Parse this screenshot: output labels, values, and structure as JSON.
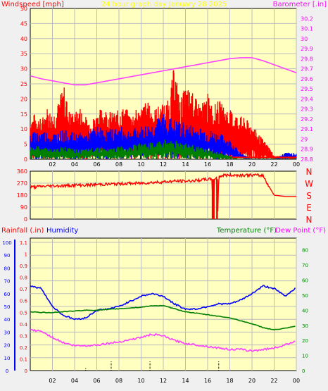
{
  "palette": {
    "background": "#f0f0f0",
    "plot_bg": "#ffffc0",
    "grid": "#bcbcbc",
    "wind_speed": "#ff0000",
    "wind_gust_low": "#0000ff",
    "wind_calm": "#008000",
    "barometer": "#ff40ff",
    "direction": "#ff0000",
    "humidity": "#0000ff",
    "temperature": "#008000",
    "dewpoint": "#ff40ff",
    "title": "#ffff00",
    "axis_red": "#ff0000",
    "axis_blue": "#0000ff",
    "axis_magenta": "#ff00ff",
    "axis_green": "#008000"
  },
  "chart_data": [
    {
      "type": "line",
      "title": "24 hour graph day   January 28 2025",
      "left_axis_label": "Windspeed [mph]",
      "right_axis_label": "Barometer [.in]",
      "x_ticks": [
        "02",
        "04",
        "06",
        "08",
        "10",
        "12",
        "14",
        "16",
        "18",
        "20",
        "22",
        "00"
      ],
      "ylim_left": [
        0,
        50
      ],
      "yticks_left": [
        "0",
        "5",
        "10",
        "15",
        "20",
        "25",
        "30",
        "35",
        "40",
        "45",
        "50"
      ],
      "ylim_right": [
        28.8,
        30.3
      ],
      "yticks_right": [
        "28.8",
        "28.9",
        "29",
        "29.1",
        "29.2",
        "29.3",
        "29.4",
        "29.5",
        "29.6",
        "29.7",
        "29.8",
        "29.9",
        "30",
        "30.1",
        "30.2"
      ],
      "grid": true,
      "series": [
        {
          "axis": "right",
          "color": "barometer",
          "x": [
            0,
            1,
            2,
            3,
            4,
            5,
            6,
            7,
            8,
            9,
            10,
            11,
            12,
            13,
            14,
            15,
            16,
            17,
            18,
            19,
            20,
            21,
            22,
            23,
            24
          ],
          "y": [
            29.63,
            29.6,
            29.58,
            29.56,
            29.54,
            29.54,
            29.56,
            29.58,
            29.6,
            29.62,
            29.64,
            29.66,
            29.68,
            29.7,
            29.72,
            29.74,
            29.76,
            29.78,
            29.8,
            29.81,
            29.81,
            29.78,
            29.74,
            29.7,
            29.66
          ]
        },
        {
          "axis": "left",
          "color": "wind_speed",
          "style": "band",
          "x": [
            0,
            0.5,
            1,
            1.5,
            2,
            2.5,
            3,
            3.5,
            4,
            4.5,
            5,
            5.5,
            6,
            6.5,
            7,
            7.5,
            8,
            8.5,
            9,
            9.5,
            10,
            10.5,
            11,
            11.5,
            12,
            12.5,
            13,
            13.5,
            14,
            14.5,
            15,
            15.5,
            16,
            16.5,
            17,
            17.5,
            18,
            18.5,
            19,
            19.5,
            20,
            20.5,
            21,
            21.5,
            22,
            22.5,
            23,
            23.5,
            24
          ],
          "y": [
            13,
            14,
            12,
            16,
            14,
            17,
            23,
            15,
            14,
            16,
            13,
            12,
            14,
            16,
            15,
            14,
            15,
            16,
            14,
            15,
            16,
            18,
            15,
            16,
            17,
            18,
            29,
            18,
            22,
            21,
            18,
            17,
            20,
            16,
            18,
            16,
            15,
            14,
            13,
            12,
            11,
            8,
            6,
            4,
            1,
            1,
            1,
            1,
            1
          ]
        },
        {
          "axis": "left",
          "color": "wind_gust_low",
          "style": "band",
          "x": [
            0,
            1,
            2,
            3,
            4,
            5,
            6,
            7,
            8,
            9,
            10,
            11,
            12,
            13,
            14,
            15,
            16,
            17,
            18,
            19,
            20,
            21,
            22,
            23,
            24
          ],
          "y": [
            8,
            9,
            8,
            9,
            8,
            8,
            10,
            9,
            10,
            9,
            10,
            11,
            14,
            12,
            11,
            10,
            9,
            8,
            6,
            2,
            0,
            0,
            0,
            2,
            2
          ]
        },
        {
          "axis": "left",
          "color": "wind_calm",
          "style": "band",
          "x": [
            0,
            1,
            2,
            3,
            4,
            5,
            6,
            7,
            8,
            9,
            10,
            11,
            12,
            13,
            14,
            15,
            16,
            17,
            18,
            19,
            20,
            21,
            22,
            23,
            24
          ],
          "y": [
            4,
            4,
            3,
            4,
            3,
            3,
            4,
            3,
            4,
            4,
            5,
            5,
            6,
            6,
            5,
            4,
            3,
            2,
            1,
            0,
            0,
            0,
            0,
            0,
            0
          ]
        }
      ]
    },
    {
      "type": "line",
      "left_axis_label": "",
      "right_axis_label": "N W S E N",
      "x_ticks": [],
      "ylim_left": [
        0,
        360
      ],
      "yticks_left": [
        "0",
        "90",
        "180",
        "270",
        "360"
      ],
      "compass_labels": [
        "N",
        "W",
        "S",
        "E",
        "N"
      ],
      "grid": true,
      "series": [
        {
          "axis": "left",
          "color": "direction",
          "x": [
            0,
            1,
            2,
            3,
            4,
            5,
            6,
            7,
            8,
            9,
            10,
            11,
            12,
            13,
            14,
            15,
            16,
            16.4,
            16.5,
            16.6,
            16.8,
            16.9,
            17,
            17.5,
            18,
            19,
            20,
            21,
            21.5,
            22,
            22.5,
            23,
            24
          ],
          "y": [
            240,
            245,
            250,
            250,
            255,
            255,
            260,
            262,
            265,
            268,
            270,
            275,
            280,
            285,
            285,
            290,
            300,
            300,
            0,
            300,
            310,
            0,
            320,
            330,
            330,
            330,
            330,
            328,
            250,
            180,
            175,
            170,
            170
          ]
        }
      ]
    },
    {
      "type": "line",
      "left_axis_label_1": "Rainfall (.in)",
      "left_axis_label_2": "Humidity",
      "right_axis_label_1": "Temperature (°F)",
      "right_axis_label_2": "Dew Point (°F)",
      "x_ticks": [
        "02",
        "04",
        "06",
        "08",
        "10",
        "12",
        "14",
        "16",
        "18",
        "20",
        "22",
        "00"
      ],
      "ylim_humidity": [
        0,
        100
      ],
      "yticks_humidity": [
        "0",
        "10",
        "20",
        "30",
        "40",
        "50",
        "60",
        "70",
        "80",
        "90",
        "100"
      ],
      "ylim_rain": [
        0,
        1.1
      ],
      "yticks_rain": [
        "0",
        "0.1",
        "0.2",
        "0.3",
        "0.4",
        "0.5",
        "0.6",
        "0.7",
        "0.8",
        "0.9",
        "1",
        "1.1"
      ],
      "ylim_temp": [
        0,
        85
      ],
      "yticks_temp": [
        "0",
        "10",
        "20",
        "30",
        "40",
        "50",
        "60",
        "70",
        "80"
      ],
      "grid": true,
      "series": [
        {
          "name": "Humidity",
          "axis": "humidity",
          "color": "humidity",
          "x": [
            0,
            1,
            2,
            3,
            4,
            5,
            6,
            7,
            8,
            9,
            10,
            11,
            12,
            13,
            14,
            15,
            16,
            17,
            18,
            19,
            20,
            21,
            22,
            23,
            24
          ],
          "y": [
            66,
            64,
            50,
            43,
            40,
            41,
            47,
            48,
            50,
            54,
            58,
            60,
            58,
            52,
            48,
            48,
            50,
            52,
            52,
            55,
            60,
            66,
            64,
            58,
            65
          ]
        },
        {
          "name": "Temperature (°F)",
          "axis": "temp",
          "color": "temperature",
          "x": [
            0,
            1,
            2,
            3,
            4,
            5,
            6,
            7,
            8,
            9,
            10,
            11,
            12,
            13,
            14,
            15,
            16,
            17,
            18,
            19,
            20,
            21,
            22,
            23,
            24
          ],
          "y": [
            39,
            38.5,
            38.5,
            39,
            39.5,
            40,
            40,
            40.5,
            41,
            41.5,
            42,
            43,
            43,
            41,
            39,
            38,
            37,
            36,
            35,
            33,
            31,
            28.5,
            27,
            28,
            29.5
          ]
        },
        {
          "name": "Dew Point (°F)",
          "axis": "temp",
          "color": "dewpoint",
          "x": [
            0,
            1,
            2,
            3,
            4,
            5,
            6,
            7,
            8,
            9,
            10,
            11,
            12,
            13,
            14,
            15,
            16,
            17,
            18,
            19,
            20,
            21,
            22,
            23,
            24
          ],
          "y": [
            27,
            26,
            22,
            18.5,
            16.5,
            16.5,
            17,
            18,
            19,
            20.5,
            22,
            24,
            23,
            20,
            18,
            17,
            16,
            15,
            14,
            14,
            13,
            14,
            15,
            17,
            20
          ]
        }
      ],
      "rain_markers": [
        5,
        7.3,
        10.8,
        17
      ]
    }
  ]
}
